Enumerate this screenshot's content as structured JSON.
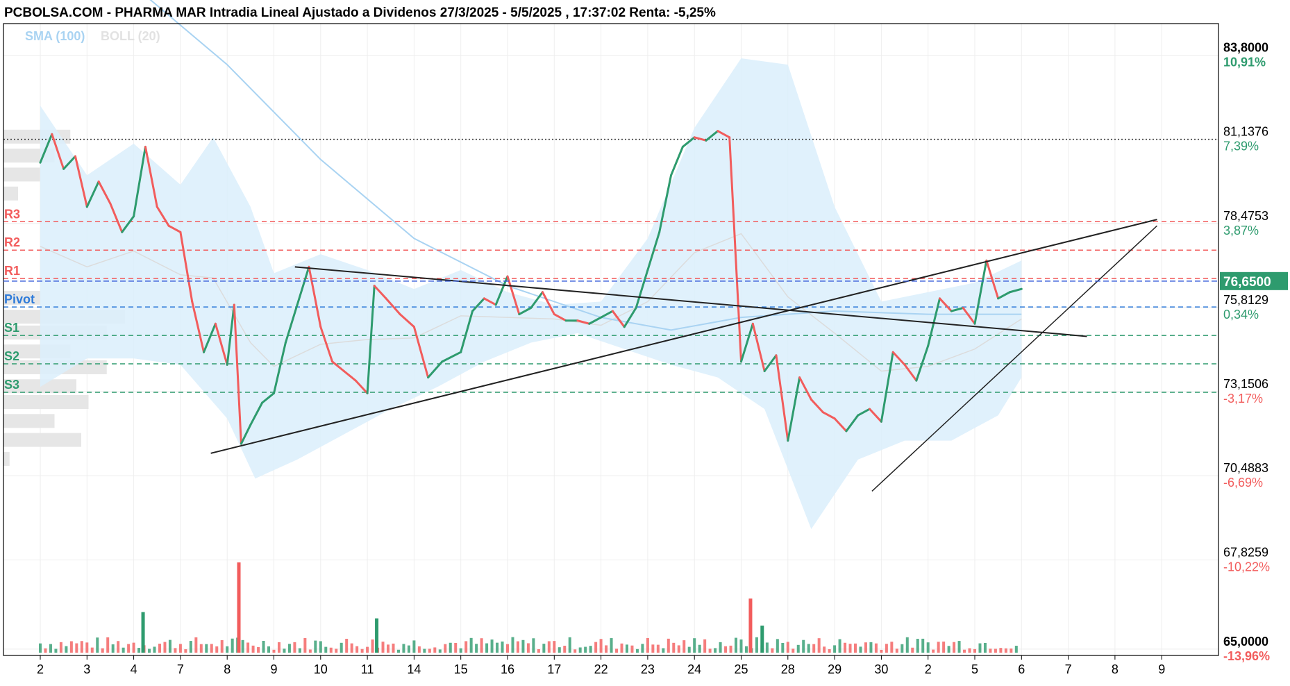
{
  "header": {
    "title": "PCBOLSA.COM - PHARMA MAR Intradia Lineal Ajustado a Dividenos 27/3/2025 - 5/5/2025 , 17:37:02 Renta: -5,25%"
  },
  "legend": {
    "sma_label": "SMA (100)",
    "boll_label": "BOLL (20)"
  },
  "colors": {
    "up": "#2e9b6e",
    "down": "#f25c5c",
    "resistance": "#f25c5c",
    "support": "#2e9b6e",
    "pivot": "#2f7bd9",
    "band_fill": "#dbeefc",
    "sma": "#a9d3f2",
    "last_price_bg": "#2e9b6e"
  },
  "chart_data": {
    "type": "line",
    "title": "PCBOLSA.COM - PHARMA MAR Intradia Lineal Ajustado a Dividenos 27/3/2025 - 5/5/2025 , 17:37:02 Renta: -5,25%",
    "x_tick_labels": [
      "2",
      "3",
      "4",
      "7",
      "8",
      "9",
      "10",
      "11",
      "14",
      "15",
      "16",
      "17",
      "22",
      "23",
      "24",
      "25",
      "28",
      "29",
      "30",
      "2",
      "5",
      "6",
      "7",
      "8",
      "9"
    ],
    "y_ticks": [
      {
        "value": 83.8,
        "label": "83,8000",
        "pct": "10,91%",
        "bold": true
      },
      {
        "value": 81.1376,
        "label": "81,1376",
        "pct": "7,39%",
        "bold": false
      },
      {
        "value": 78.4753,
        "label": "78,4753",
        "pct": "3,87%",
        "bold": false
      },
      {
        "value": 75.8129,
        "label": "75,8129",
        "pct": "0,34%",
        "bold": false
      },
      {
        "value": 73.1506,
        "label": "73,1506",
        "pct": "-3,17%",
        "bold": false
      },
      {
        "value": 70.4883,
        "label": "70,4883",
        "pct": "-6,69%",
        "bold": false
      },
      {
        "value": 67.8259,
        "label": "67,8259",
        "pct": "-10,22%",
        "bold": false
      },
      {
        "value": 65.0,
        "label": "65,0000",
        "pct": "-13,96%",
        "bold": true
      }
    ],
    "ylim": [
      64.8,
      84.8
    ],
    "last_price": {
      "value": 76.65,
      "label": "76,6500"
    },
    "reference_close": 81.1376,
    "levels": [
      {
        "name": "R3",
        "value": 78.53,
        "kind": "resistance"
      },
      {
        "name": "R2",
        "value": 77.63,
        "kind": "resistance"
      },
      {
        "name": "R1",
        "value": 76.73,
        "kind": "resistance"
      },
      {
        "name": "Pivot",
        "value": 75.83,
        "kind": "pivot"
      },
      {
        "name": "S1",
        "value": 74.93,
        "kind": "support"
      },
      {
        "name": "S2",
        "value": 74.03,
        "kind": "support"
      },
      {
        "name": "S3",
        "value": 73.13,
        "kind": "support"
      }
    ],
    "price_series": [
      {
        "day": 0,
        "v": 80.4
      },
      {
        "day": 0.25,
        "v": 81.3
      },
      {
        "day": 0.5,
        "v": 80.2
      },
      {
        "day": 0.75,
        "v": 80.6
      },
      {
        "day": 1,
        "v": 79.0
      },
      {
        "day": 1.25,
        "v": 79.8
      },
      {
        "day": 1.5,
        "v": 79.1
      },
      {
        "day": 1.75,
        "v": 78.2
      },
      {
        "day": 2,
        "v": 78.7
      },
      {
        "day": 2.25,
        "v": 80.9
      },
      {
        "day": 2.5,
        "v": 79.0
      },
      {
        "day": 2.75,
        "v": 78.4
      },
      {
        "day": 3,
        "v": 78.2
      },
      {
        "day": 3.25,
        "v": 76.0
      },
      {
        "day": 3.5,
        "v": 74.4
      },
      {
        "day": 3.75,
        "v": 75.3
      },
      {
        "day": 4,
        "v": 74.0
      },
      {
        "day": 4.15,
        "v": 75.9
      },
      {
        "day": 4.3,
        "v": 71.5
      },
      {
        "day": 4.5,
        "v": 72.1
      },
      {
        "day": 4.75,
        "v": 72.8
      },
      {
        "day": 5,
        "v": 73.1
      },
      {
        "day": 5.25,
        "v": 74.7
      },
      {
        "day": 5.5,
        "v": 75.9
      },
      {
        "day": 5.75,
        "v": 77.1
      },
      {
        "day": 6,
        "v": 75.2
      },
      {
        "day": 6.25,
        "v": 74.1
      },
      {
        "day": 6.5,
        "v": 73.8
      },
      {
        "day": 6.75,
        "v": 73.5
      },
      {
        "day": 7,
        "v": 73.1
      },
      {
        "day": 7.15,
        "v": 76.5
      },
      {
        "day": 7.4,
        "v": 76.1
      },
      {
        "day": 7.7,
        "v": 75.6
      },
      {
        "day": 8,
        "v": 75.2
      },
      {
        "day": 8.3,
        "v": 73.6
      },
      {
        "day": 8.6,
        "v": 74.1
      },
      {
        "day": 9,
        "v": 74.4
      },
      {
        "day": 9.25,
        "v": 75.7
      },
      {
        "day": 9.5,
        "v": 76.1
      },
      {
        "day": 9.75,
        "v": 75.9
      },
      {
        "day": 10,
        "v": 76.8
      },
      {
        "day": 10.25,
        "v": 75.6
      },
      {
        "day": 10.5,
        "v": 75.8
      },
      {
        "day": 10.75,
        "v": 76.3
      },
      {
        "day": 11,
        "v": 75.6
      },
      {
        "day": 11.25,
        "v": 75.4
      },
      {
        "day": 11.5,
        "v": 75.4
      },
      {
        "day": 11.75,
        "v": 75.3
      },
      {
        "day": 12,
        "v": 75.5
      },
      {
        "day": 12.25,
        "v": 75.7
      },
      {
        "day": 12.5,
        "v": 75.2
      },
      {
        "day": 12.75,
        "v": 75.8
      },
      {
        "day": 13,
        "v": 77.0
      },
      {
        "day": 13.25,
        "v": 78.2
      },
      {
        "day": 13.5,
        "v": 80.0
      },
      {
        "day": 13.75,
        "v": 80.9
      },
      {
        "day": 14,
        "v": 81.2
      },
      {
        "day": 14.25,
        "v": 81.1
      },
      {
        "day": 14.5,
        "v": 81.4
      },
      {
        "day": 14.75,
        "v": 81.2
      },
      {
        "day": 15,
        "v": 74.1
      },
      {
        "day": 15.25,
        "v": 75.3
      },
      {
        "day": 15.5,
        "v": 73.8
      },
      {
        "day": 15.75,
        "v": 74.3
      },
      {
        "day": 16,
        "v": 71.6
      },
      {
        "day": 16.25,
        "v": 73.6
      },
      {
        "day": 16.5,
        "v": 72.9
      },
      {
        "day": 16.75,
        "v": 72.5
      },
      {
        "day": 17,
        "v": 72.3
      },
      {
        "day": 17.25,
        "v": 71.9
      },
      {
        "day": 17.5,
        "v": 72.4
      },
      {
        "day": 17.75,
        "v": 72.6
      },
      {
        "day": 18,
        "v": 72.2
      },
      {
        "day": 18.25,
        "v": 74.4
      },
      {
        "day": 18.5,
        "v": 74.0
      },
      {
        "day": 18.75,
        "v": 73.5
      },
      {
        "day": 19,
        "v": 74.6
      },
      {
        "day": 19.25,
        "v": 76.1
      },
      {
        "day": 19.5,
        "v": 75.7
      },
      {
        "day": 19.75,
        "v": 75.8
      },
      {
        "day": 20,
        "v": 75.3
      },
      {
        "day": 20.25,
        "v": 77.3
      },
      {
        "day": 20.5,
        "v": 76.1
      },
      {
        "day": 20.75,
        "v": 76.3
      },
      {
        "day": 21,
        "v": 76.4
      }
    ],
    "sma_series": [
      {
        "day": 0,
        "v": 87.5
      },
      {
        "day": 2,
        "v": 86.0
      },
      {
        "day": 4,
        "v": 83.5
      },
      {
        "day": 6,
        "v": 80.5
      },
      {
        "day": 8,
        "v": 78.0
      },
      {
        "day": 10,
        "v": 76.5
      },
      {
        "day": 12,
        "v": 75.5
      },
      {
        "day": 13.5,
        "v": 75.1
      },
      {
        "day": 15,
        "v": 75.5
      },
      {
        "day": 17,
        "v": 75.7
      },
      {
        "day": 19,
        "v": 75.6
      },
      {
        "day": 21,
        "v": 75.6
      }
    ],
    "boll_upper": [
      {
        "day": 0,
        "v": 82.2
      },
      {
        "day": 1,
        "v": 80.0
      },
      {
        "day": 2,
        "v": 81.0
      },
      {
        "day": 3,
        "v": 79.7
      },
      {
        "day": 3.7,
        "v": 81.2
      },
      {
        "day": 4.5,
        "v": 79.0
      },
      {
        "day": 5,
        "v": 76.9
      },
      {
        "day": 6,
        "v": 77.5
      },
      {
        "day": 7,
        "v": 77.0
      },
      {
        "day": 8,
        "v": 76.4
      },
      {
        "day": 9,
        "v": 77.0
      },
      {
        "day": 10,
        "v": 76.3
      },
      {
        "day": 11,
        "v": 75.9
      },
      {
        "day": 12,
        "v": 76.0
      },
      {
        "day": 13,
        "v": 78.0
      },
      {
        "day": 14,
        "v": 81.5
      },
      {
        "day": 15,
        "v": 83.7
      },
      {
        "day": 16,
        "v": 83.5
      },
      {
        "day": 17,
        "v": 79.0
      },
      {
        "day": 18,
        "v": 76.0
      },
      {
        "day": 19,
        "v": 76.3
      },
      {
        "day": 20,
        "v": 76.6
      },
      {
        "day": 21,
        "v": 77.3
      }
    ],
    "boll_lower": [
      {
        "day": 0,
        "v": 73.3
      },
      {
        "day": 1,
        "v": 74.2
      },
      {
        "day": 2,
        "v": 74.2
      },
      {
        "day": 3,
        "v": 74.0
      },
      {
        "day": 4,
        "v": 72.3
      },
      {
        "day": 4.6,
        "v": 70.4
      },
      {
        "day": 5.5,
        "v": 71.0
      },
      {
        "day": 6.5,
        "v": 71.8
      },
      {
        "day": 7.5,
        "v": 72.6
      },
      {
        "day": 8.5,
        "v": 73.3
      },
      {
        "day": 9.5,
        "v": 74.1
      },
      {
        "day": 10.5,
        "v": 74.7
      },
      {
        "day": 11.5,
        "v": 75.0
      },
      {
        "day": 12.5,
        "v": 74.5
      },
      {
        "day": 13.5,
        "v": 74.0
      },
      {
        "day": 14.5,
        "v": 73.6
      },
      {
        "day": 15.5,
        "v": 72.6
      },
      {
        "day": 16.5,
        "v": 68.8
      },
      {
        "day": 17.5,
        "v": 71.0
      },
      {
        "day": 18.5,
        "v": 71.6
      },
      {
        "day": 19.5,
        "v": 71.6
      },
      {
        "day": 20.5,
        "v": 72.4
      },
      {
        "day": 21,
        "v": 73.6
      }
    ],
    "trendlines": [
      {
        "from": {
          "day": 3.65,
          "v": 71.2
        },
        "to": {
          "day": 23.9,
          "v": 78.6
        }
      },
      {
        "from": {
          "day": 5.45,
          "v": 77.1
        },
        "to": {
          "day": 22.4,
          "v": 74.9
        }
      },
      {
        "from": {
          "day": 17.8,
          "v": 70.0
        },
        "to": {
          "day": 23.9,
          "v": 78.4
        }
      }
    ],
    "volume_profile": [
      {
        "v": 81.2,
        "w": 0.55
      },
      {
        "v": 80.6,
        "w": 0.42
      },
      {
        "v": 80.0,
        "w": 0.3
      },
      {
        "v": 79.4,
        "w": 0.12
      },
      {
        "v": 76.1,
        "w": 0.3
      },
      {
        "v": 75.5,
        "w": 1.0
      },
      {
        "v": 75.0,
        "w": 0.85
      },
      {
        "v": 74.4,
        "w": 0.55
      },
      {
        "v": 73.9,
        "w": 0.85
      },
      {
        "v": 73.3,
        "w": 0.6
      },
      {
        "v": 72.8,
        "w": 0.7
      },
      {
        "v": 72.2,
        "w": 0.42
      },
      {
        "v": 71.6,
        "w": 0.64
      },
      {
        "v": 71.0,
        "w": 0.05
      }
    ],
    "volume": {
      "days": 21,
      "spikes": [
        {
          "day": 2.2,
          "h": 0.45,
          "kind": "up"
        },
        {
          "day": 4.25,
          "h": 1.0,
          "kind": "down"
        },
        {
          "day": 15.2,
          "h": 0.6,
          "kind": "down"
        },
        {
          "day": 7.2,
          "h": 0.38,
          "kind": "up"
        },
        {
          "day": 15.45,
          "h": 0.3,
          "kind": "up"
        }
      ]
    }
  }
}
